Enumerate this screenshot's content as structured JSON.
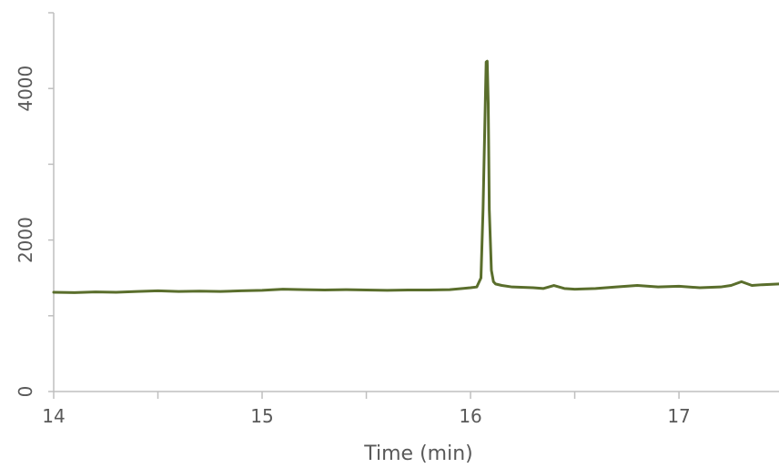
{
  "chart_data": {
    "type": "line",
    "title": "",
    "xlabel": "Time (min)",
    "ylabel": "",
    "xlim": [
      14,
      17.48
    ],
    "ylim": [
      0,
      5000
    ],
    "x_ticks": [
      14,
      15,
      16,
      17
    ],
    "y_ticks": [
      0,
      2000,
      4000
    ],
    "x_tick_labels": [
      "14",
      "15",
      "16",
      "17"
    ],
    "y_tick_labels": [
      "0",
      "2000",
      "4000"
    ],
    "grid": false,
    "legend": "none",
    "series": [
      {
        "color": "#5a6e2c",
        "x": [
          14.0,
          14.1,
          14.2,
          14.3,
          14.4,
          14.5,
          14.6,
          14.7,
          14.8,
          14.9,
          15.0,
          15.1,
          15.2,
          15.3,
          15.4,
          15.5,
          15.6,
          15.7,
          15.8,
          15.9,
          15.96,
          16.0,
          16.03,
          16.05,
          16.06,
          16.07,
          16.075,
          16.08,
          16.085,
          16.09,
          16.1,
          16.11,
          16.12,
          16.15,
          16.2,
          16.3,
          16.35,
          16.4,
          16.45,
          16.5,
          16.6,
          16.7,
          16.8,
          16.9,
          17.0,
          17.1,
          17.2,
          17.25,
          17.3,
          17.35,
          17.4,
          17.48
        ],
        "y": [
          1310,
          1305,
          1315,
          1310,
          1320,
          1330,
          1320,
          1325,
          1320,
          1330,
          1335,
          1350,
          1345,
          1340,
          1345,
          1340,
          1335,
          1340,
          1340,
          1345,
          1360,
          1370,
          1380,
          1500,
          2400,
          3700,
          4350,
          4360,
          3800,
          2400,
          1600,
          1450,
          1420,
          1400,
          1380,
          1370,
          1360,
          1400,
          1360,
          1350,
          1360,
          1380,
          1400,
          1380,
          1390,
          1370,
          1380,
          1400,
          1450,
          1400,
          1410,
          1420
        ]
      }
    ]
  }
}
